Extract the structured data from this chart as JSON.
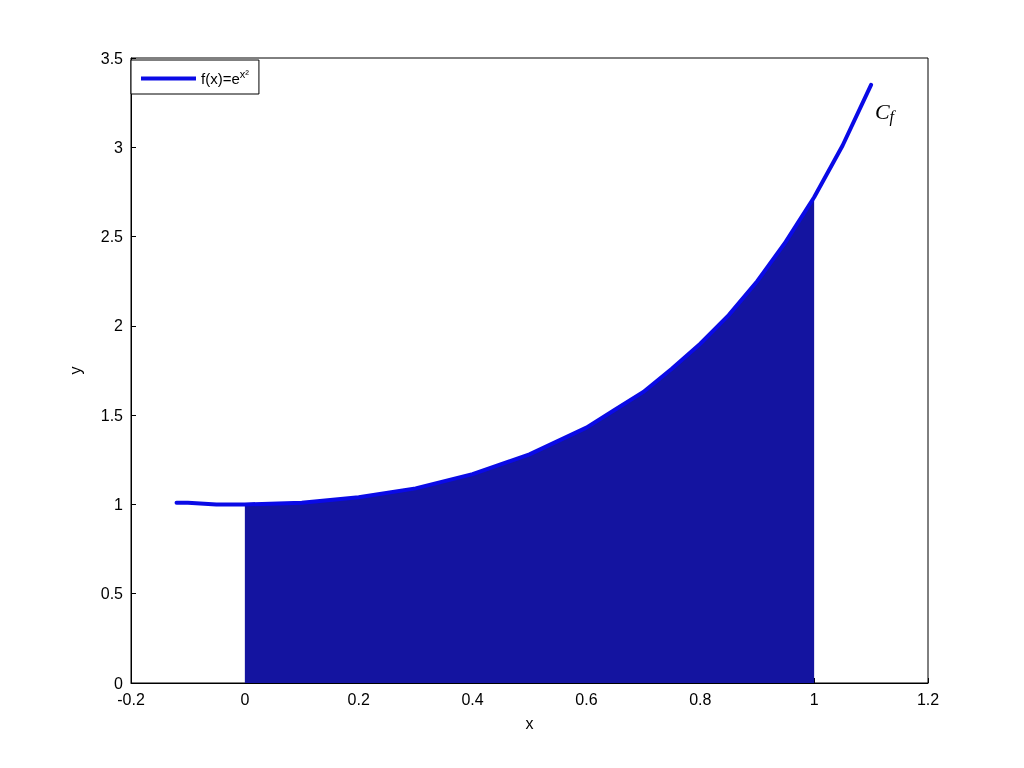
{
  "chart_data": {
    "type": "line",
    "xlabel": "x",
    "ylabel": "y",
    "xlim": [
      -0.2,
      1.2
    ],
    "xticks": [
      -0.2,
      0,
      0.2,
      0.4,
      0.6,
      0.8,
      1,
      1.2
    ],
    "ylim": [
      0,
      3.5
    ],
    "yticks": [
      0,
      0.5,
      1,
      1.5,
      2,
      2.5,
      3,
      3.5
    ],
    "grid": false,
    "legend": "top left",
    "marker": "none",
    "line_style": "solid",
    "annotations": [
      "C$_{f}$"
    ],
    "series": [
      {
        "type": "area",
        "color": "#1414a0",
        "x": [
          0,
          0.1,
          0.2,
          0.3,
          0.4,
          0.5,
          0.6,
          0.65,
          0.7,
          0.75,
          0.8,
          0.85,
          0.9,
          0.95,
          1.0
        ],
        "values": [
          1.0,
          1.01,
          1.04,
          1.09,
          1.17,
          1.28,
          1.43,
          1.53,
          1.63,
          1.76,
          1.9,
          2.06,
          2.25,
          2.47,
          2.72
        ]
      },
      {
        "name": "f(x)=e$^{x²}$",
        "color": "#0a0ae6",
        "x": [
          -0.12,
          -0.1,
          -0.05,
          0,
          0.1,
          0.2,
          0.3,
          0.4,
          0.5,
          0.6,
          0.65,
          0.7,
          0.75,
          0.8,
          0.85,
          0.9,
          0.95,
          1.0,
          1.05,
          1.1
        ],
        "values": [
          1.01,
          1.01,
          1.0,
          1.0,
          1.01,
          1.04,
          1.09,
          1.17,
          1.28,
          1.43,
          1.53,
          1.63,
          1.76,
          1.9,
          2.06,
          2.25,
          2.47,
          2.72,
          3.01,
          3.35
        ]
      }
    ]
  }
}
